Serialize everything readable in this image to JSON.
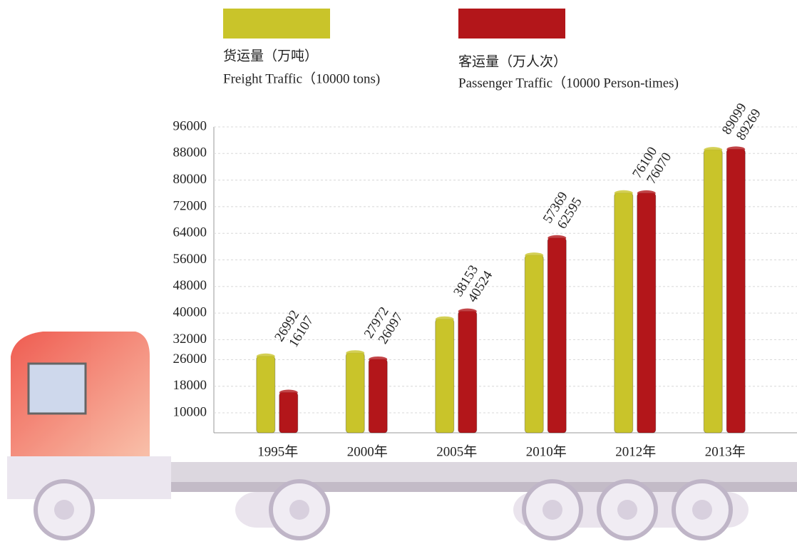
{
  "chart_data": {
    "type": "bar",
    "categories": [
      "1995年",
      "2000年",
      "2005年",
      "2010年",
      "2012年",
      "2013年"
    ],
    "series": [
      {
        "name": "货运量（万吨）",
        "name_en": "Freight Traffic（10000 tons)",
        "color": "#c9c42a",
        "values": [
          26992,
          27972,
          38153,
          57369,
          76100,
          89099
        ]
      },
      {
        "name": "客运量（万人次）",
        "name_en": "Passenger Traffic（10000 Person-times)",
        "color": "#b3161a",
        "values": [
          16107,
          26097,
          40524,
          62595,
          76070,
          89269
        ]
      }
    ],
    "ylim": [
      4000,
      96000
    ],
    "yticks": [
      96000,
      88000,
      80000,
      72000,
      64000,
      56000,
      48000,
      40000,
      32000,
      26000,
      18000,
      10000
    ],
    "grid": true
  }
}
